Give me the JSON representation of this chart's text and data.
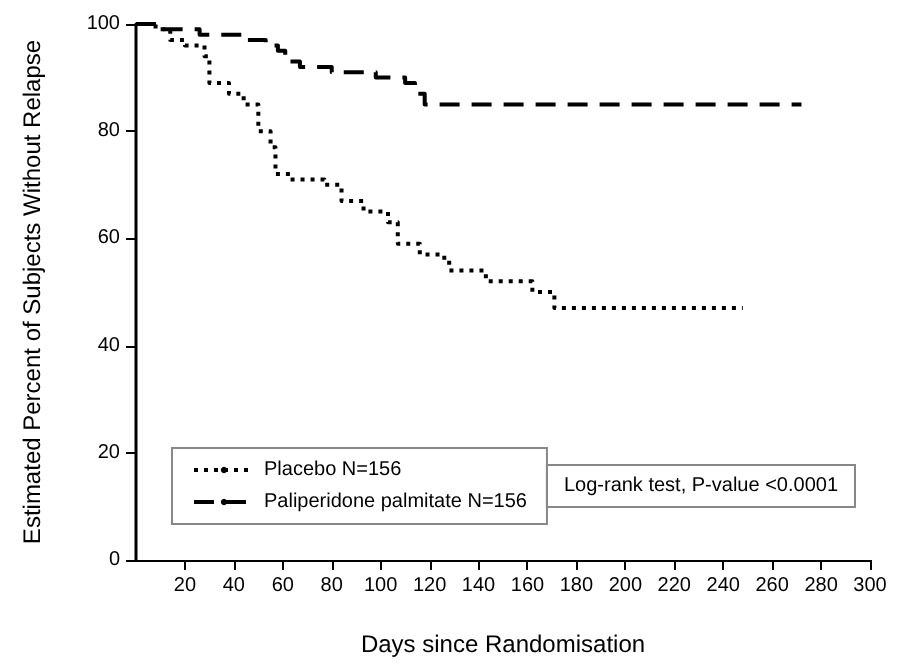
{
  "chart_data": {
    "type": "step",
    "xlabel": "Days since Randomisation",
    "ylabel": "Estimated Percent of Subjects Without Relapse",
    "xlim": [
      0,
      300
    ],
    "xticks": [
      20,
      40,
      60,
      80,
      100,
      120,
      140,
      160,
      180,
      200,
      220,
      240,
      260,
      280,
      300
    ],
    "ylim": [
      0,
      100
    ],
    "yticks": [
      0,
      20,
      40,
      60,
      80,
      100
    ],
    "grid": false,
    "legend": "bottom left",
    "marker": "none",
    "annotations": [
      "Log-rank test, P-value <0.0001"
    ],
    "series": [
      {
        "name": "Placebo N=156",
        "color": "#000000",
        "line_style": "dotted",
        "x": [
          0,
          8,
          14,
          20,
          28,
          30,
          38,
          44,
          50,
          55,
          57,
          63,
          77,
          84,
          93,
          103,
          107,
          116,
          126,
          128,
          143,
          162,
          171,
          248
        ],
        "values": [
          100,
          99,
          97,
          96,
          94,
          89,
          87,
          85,
          80,
          77,
          72,
          71,
          70,
          67,
          65,
          63,
          59,
          57,
          56,
          54,
          52,
          50,
          47,
          47
        ]
      },
      {
        "name": "Paliperidone palmitate N=156",
        "color": "#000000",
        "line_style": "dashed",
        "x": [
          0,
          10,
          26,
          45,
          53,
          58,
          61,
          67,
          75,
          80,
          98,
          110,
          114,
          118,
          272
        ],
        "values": [
          100,
          99,
          98,
          97,
          96,
          95,
          93,
          92,
          92,
          91,
          90,
          89,
          87,
          85,
          85
        ]
      }
    ]
  }
}
